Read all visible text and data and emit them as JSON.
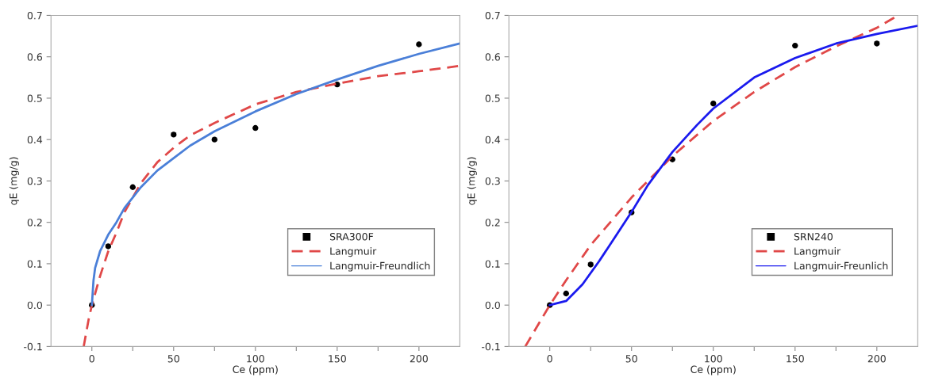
{
  "chart_data": [
    {
      "type": "line",
      "xlabel": "Ce (ppm)",
      "ylabel": "qE (mg/g)",
      "xlim": [
        -25,
        225
      ],
      "ylim": [
        -0.1,
        0.7
      ],
      "xticks": [
        0,
        {
          "value": 25,
          "label": null
        },
        50,
        {
          "value": 75,
          "label": null
        },
        100,
        {
          "value": 125,
          "label": null
        },
        150,
        {
          "value": 175,
          "label": null
        },
        200
      ],
      "yticks": [
        -0.1,
        {
          "value": 0,
          "label": "0.0"
        },
        0.1,
        0.2,
        0.3,
        0.4,
        0.5,
        0.6,
        0.7
      ],
      "grid": false,
      "legend": "bottom right",
      "series": [
        {
          "name": "SRA300F",
          "type": "scatter",
          "marker": "circle",
          "color": "#000000",
          "x": [
            0,
            10,
            25,
            50,
            75,
            100,
            150,
            200
          ],
          "values": [
            0,
            0.142,
            0.285,
            0.412,
            0.4,
            0.428,
            0.533,
            0.63
          ]
        },
        {
          "name": "Langmuir",
          "line_style": "dashed",
          "color": "#e04848",
          "x": [
            -5,
            -2,
            0,
            5,
            10,
            15,
            20,
            25,
            30,
            40,
            50,
            60,
            75,
            100,
            125,
            150,
            175,
            200,
            225
          ],
          "values": [
            -0.1,
            -0.035,
            0,
            0.07,
            0.13,
            0.175,
            0.225,
            0.26,
            0.295,
            0.345,
            0.38,
            0.41,
            0.44,
            0.485,
            0.515,
            0.535,
            0.553,
            0.565,
            0.578
          ]
        },
        {
          "name": "Langmuir-Freundlich",
          "line_style": "solid",
          "color": "#4a7fd8",
          "x": [
            0,
            1,
            2,
            5,
            10,
            15,
            20,
            25,
            30,
            40,
            50,
            60,
            75,
            100,
            125,
            150,
            175,
            200,
            225
          ],
          "values": [
            0.0,
            0.06,
            0.09,
            0.13,
            0.17,
            0.2,
            0.235,
            0.26,
            0.285,
            0.325,
            0.355,
            0.385,
            0.42,
            0.468,
            0.51,
            0.545,
            0.578,
            0.607,
            0.632
          ]
        }
      ]
    },
    {
      "type": "line",
      "xlabel": "Ce (ppm)",
      "ylabel": "qE (mg/g)",
      "xlim": [
        -25,
        225
      ],
      "ylim": [
        -0.1,
        0.7
      ],
      "xticks": [
        0,
        {
          "value": 25,
          "label": null
        },
        50,
        {
          "value": 75,
          "label": null
        },
        100,
        {
          "value": 125,
          "label": null
        },
        150,
        {
          "value": 175,
          "label": null
        },
        200
      ],
      "yticks": [
        -0.1,
        {
          "value": 0,
          "label": "0.0"
        },
        0.1,
        0.2,
        0.3,
        0.4,
        0.5,
        0.6,
        0.7
      ],
      "grid": false,
      "legend": "bottom right",
      "series": [
        {
          "name": "SRN240",
          "type": "scatter",
          "marker": "circle",
          "color": "#000000",
          "x": [
            0,
            10,
            25,
            50,
            75,
            100,
            150,
            200
          ],
          "values": [
            0,
            0.028,
            0.098,
            0.224,
            0.352,
            0.487,
            0.627,
            0.632
          ]
        },
        {
          "name": "Langmuir",
          "line_style": "dashed",
          "color": "#e04848",
          "x": [
            -15,
            0,
            10,
            25,
            50,
            75,
            100,
            125,
            150,
            175,
            200,
            213
          ],
          "values": [
            -0.1,
            0,
            0.06,
            0.145,
            0.26,
            0.36,
            0.445,
            0.515,
            0.575,
            0.625,
            0.67,
            0.7
          ]
        },
        {
          "name": "Langmuir-Freunlich",
          "line_style": "solid",
          "color": "#1a1aee",
          "x": [
            0,
            10,
            20,
            30,
            40,
            50,
            60,
            75,
            90,
            100,
            125,
            150,
            175,
            200,
            225
          ],
          "values": [
            0.0,
            0.01,
            0.05,
            0.105,
            0.165,
            0.225,
            0.29,
            0.37,
            0.435,
            0.475,
            0.55,
            0.597,
            0.632,
            0.655,
            0.675
          ]
        }
      ]
    }
  ]
}
